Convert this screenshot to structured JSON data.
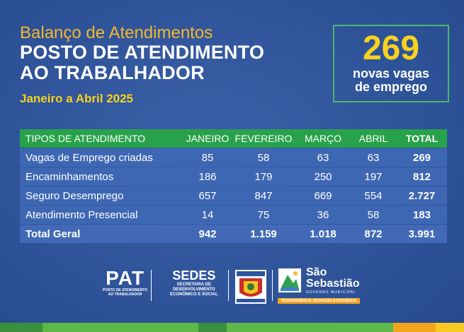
{
  "header": {
    "super": "Balanço de Atendimentos",
    "title_line1": "POSTO DE ATENDIMENTO",
    "title_line2": "AO TRABALHADOR",
    "period": "Janeiro a Abril 2025"
  },
  "highlight": {
    "number": "269",
    "caption_line1": "novas vagas",
    "caption_line2": "de emprego"
  },
  "table": {
    "headers": [
      "TIPOS DE ATENDIMENTO",
      "JANEIRO",
      "FEVEREIRO",
      "MARÇO",
      "ABRIL",
      "TOTAL"
    ],
    "rows": [
      [
        "Vagas de Emprego criadas",
        "85",
        "58",
        "63",
        "63",
        "269"
      ],
      [
        "Encaminhamentos",
        "186",
        "179",
        "250",
        "197",
        "812"
      ],
      [
        "Seguro Desemprego",
        "657",
        "847",
        "669",
        "554",
        "2.727"
      ],
      [
        "Atendimento Presencial",
        "14",
        "75",
        "36",
        "58",
        "183"
      ]
    ],
    "total": [
      "Total Geral",
      "942",
      "1.159",
      "1.018",
      "872",
      "3.991"
    ]
  },
  "footer": {
    "pat_big": "PAT",
    "pat_small1": "POSTO DE ATENDIMENTO",
    "pat_small2": "AO TRABALHADOR",
    "sedes_big": "SEDES",
    "sedes_small1": "SECRETARIA DE",
    "sedes_small2": "DESENVOLVIMENTO",
    "sedes_small3": "ECONÔMICO E SOCIAL",
    "city_name1": "São",
    "city_name2": "Sebastião",
    "city_gov": "GOVERNO MUNICIPAL",
    "city_tagline": "TRANSPARÊNCIA, INOVAÇÃO E EFICIÊNCIA"
  },
  "colors": {
    "background": "#2f549a",
    "accent_orange": "#f5b82e",
    "accent_yellow": "#f5d21f",
    "table_header": "#28a24a",
    "table_row": "#3e67b3",
    "bar": [
      "#3a8f3c",
      "#5cb848",
      "#3a8f3c",
      "#5cb848",
      "#f0a51c",
      "#f7c922"
    ]
  }
}
